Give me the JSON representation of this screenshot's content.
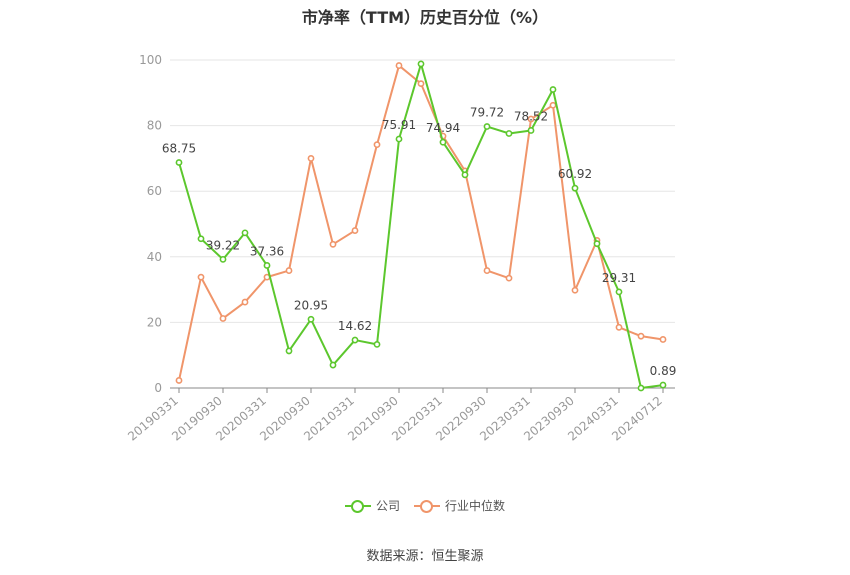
{
  "chart_data": {
    "type": "line",
    "title": "市净率（TTM）历史百分位（%）",
    "ylim": [
      0,
      100
    ],
    "yticks": [
      0,
      20,
      40,
      60,
      80,
      100
    ],
    "grid": true,
    "legend_position": "bottom",
    "x_tick_labels": [
      "20190331",
      "20190930",
      "20200331",
      "20200930",
      "20210331",
      "20210930",
      "20220331",
      "20220930",
      "20230331",
      "20230930",
      "20240331",
      "20240712"
    ],
    "series": [
      {
        "name": "公司",
        "color": "#5cc72d",
        "values": [
          68.75,
          45.5,
          39.22,
          47.3,
          37.36,
          11.3,
          20.95,
          7.0,
          14.62,
          13.3,
          75.91,
          98.8,
          74.94,
          65.0,
          79.72,
          77.6,
          78.52,
          91.0,
          60.92,
          44.0,
          29.31,
          0.0,
          0.89
        ],
        "labels": {
          "0": "68.75",
          "2": "39.22",
          "4": "37.36",
          "6": "20.95",
          "8": "14.62",
          "10": "75.91",
          "12": "74.94",
          "14": "79.72",
          "16": "78.52",
          "18": "60.92",
          "20": "29.31",
          "22": "0.89"
        }
      },
      {
        "name": "行业中位数",
        "color": "#f0956a",
        "values": [
          2.3,
          33.8,
          21.2,
          26.2,
          33.8,
          35.8,
          70.0,
          43.8,
          48.0,
          74.2,
          98.3,
          92.8,
          76.8,
          66.2,
          35.8,
          33.5,
          82.0,
          86.2,
          29.8,
          45.0,
          18.5,
          15.8,
          14.8
        ]
      }
    ]
  },
  "source_text": "数据来源：恒生聚源"
}
